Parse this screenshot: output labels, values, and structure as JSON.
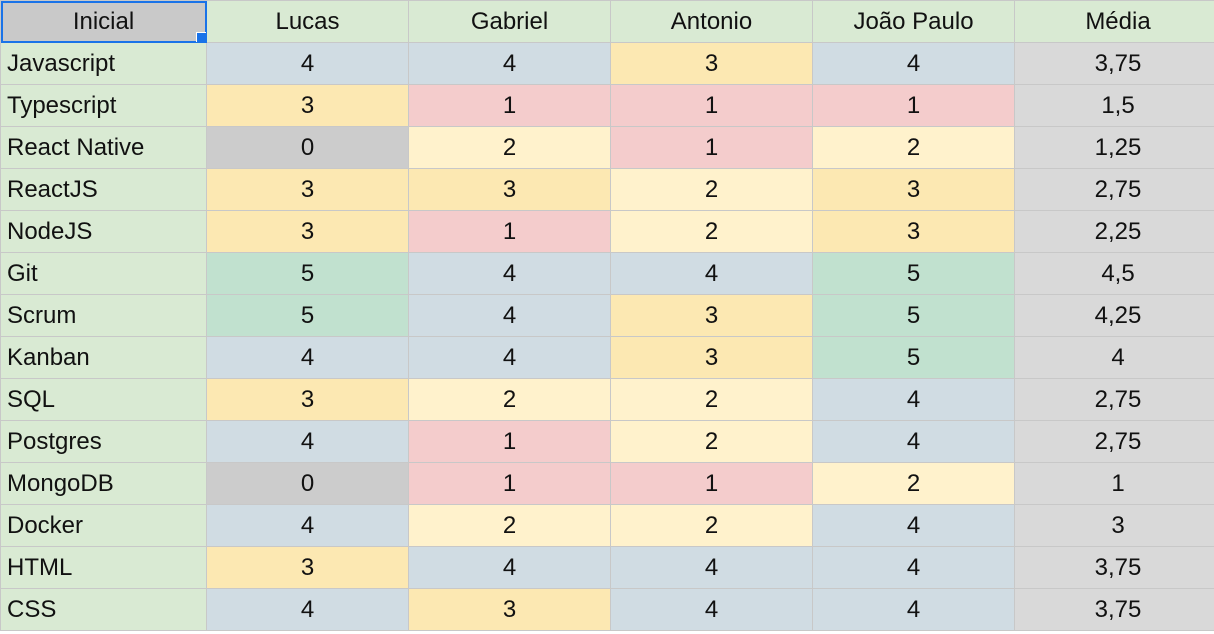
{
  "colors": {
    "header_bg": "#d9ead3",
    "name_bg": "#d9ead3",
    "value_0": "#cccccc",
    "value_1": "#f4cccc",
    "value_2": "#fff2cc",
    "value_3": "#fce8b2",
    "value_4": "#d0dce3",
    "value_5": "#c1e1cf",
    "average_bg": "#d9d9d9",
    "selection": "#1a73e8"
  },
  "header": {
    "selected_cell": "Inicial",
    "cols": [
      "Lucas",
      "Gabriel",
      "Antonio",
      "João Paulo",
      "Média"
    ]
  },
  "rows": [
    {
      "skill": "Javascript",
      "values": [
        "4",
        "4",
        "3",
        "4"
      ],
      "avg": "3,75"
    },
    {
      "skill": "Typescript",
      "values": [
        "3",
        "1",
        "1",
        "1"
      ],
      "avg": "1,5"
    },
    {
      "skill": "React Native",
      "values": [
        "0",
        "2",
        "1",
        "2"
      ],
      "avg": "1,25"
    },
    {
      "skill": "ReactJS",
      "values": [
        "3",
        "3",
        "2",
        "3"
      ],
      "avg": "2,75"
    },
    {
      "skill": "NodeJS",
      "values": [
        "3",
        "1",
        "2",
        "3"
      ],
      "avg": "2,25"
    },
    {
      "skill": "Git",
      "values": [
        "5",
        "4",
        "4",
        "5"
      ],
      "avg": "4,5"
    },
    {
      "skill": "Scrum",
      "values": [
        "5",
        "4",
        "3",
        "5"
      ],
      "avg": "4,25"
    },
    {
      "skill": "Kanban",
      "values": [
        "4",
        "4",
        "3",
        "5"
      ],
      "avg": "4"
    },
    {
      "skill": "SQL",
      "values": [
        "3",
        "2",
        "2",
        "4"
      ],
      "avg": "2,75"
    },
    {
      "skill": "Postgres",
      "values": [
        "4",
        "1",
        "2",
        "4"
      ],
      "avg": "2,75"
    },
    {
      "skill": "MongoDB",
      "values": [
        "0",
        "1",
        "1",
        "2"
      ],
      "avg": "1"
    },
    {
      "skill": "Docker",
      "values": [
        "4",
        "2",
        "2",
        "4"
      ],
      "avg": "3"
    },
    {
      "skill": "HTML",
      "values": [
        "3",
        "4",
        "4",
        "4"
      ],
      "avg": "3,75"
    },
    {
      "skill": "CSS",
      "values": [
        "4",
        "3",
        "4",
        "4"
      ],
      "avg": "3,75"
    }
  ]
}
